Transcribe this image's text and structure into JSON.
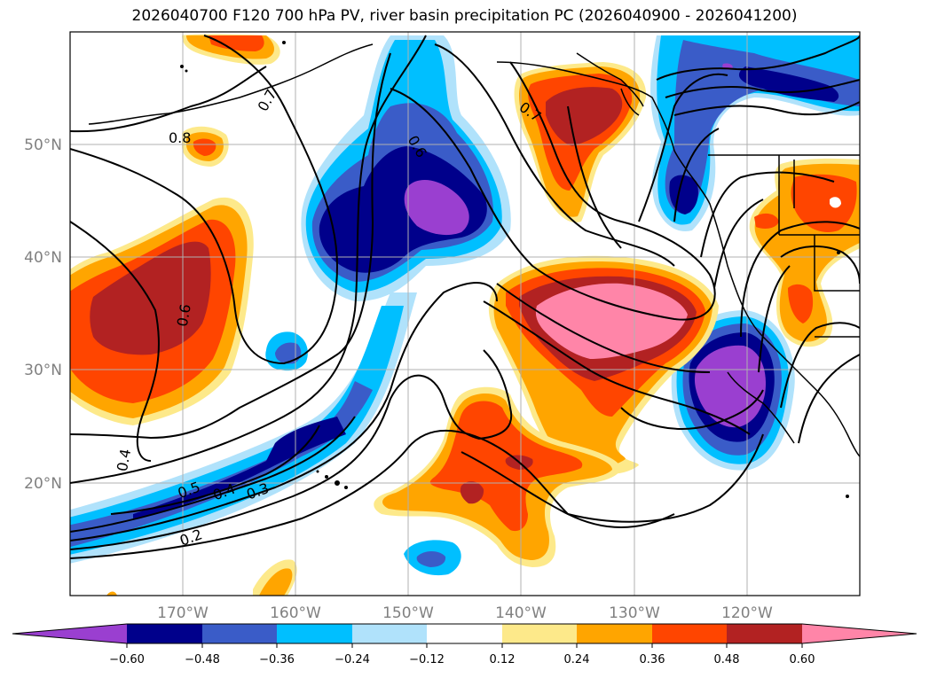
{
  "title": "2026040700 F120 700 hPa PV, river basin precipitation PC (2026040900 - 2026041200)",
  "colors": {
    "neg_lt_060": "#9a3fd0",
    "neg_048_060": "#00008b",
    "neg_036_048": "#3a5cc8",
    "neg_024_036": "#00bfff",
    "neg_012_024": "#b0e2fb",
    "zero": "#ffffff",
    "pos_012_024": "#fde98a",
    "pos_024_036": "#ffa500",
    "pos_036_048": "#ff4500",
    "pos_048_060": "#b22222",
    "pos_gt_060": "#ff85a8"
  },
  "lat_labels": [
    "50°N",
    "40°N",
    "30°N",
    "20°N"
  ],
  "lon_labels": [
    "170°W",
    "160°W",
    "150°W",
    "140°W",
    "130°W",
    "120°W"
  ],
  "colorbar": {
    "ticks": [
      "−0.60",
      "−0.48",
      "−0.36",
      "−0.24",
      "−0.12",
      "0.12",
      "0.24",
      "0.36",
      "0.48",
      "0.60"
    ]
  },
  "contour_labels": [
    "0.8",
    "0.7",
    "0.6",
    "0.5",
    "0.4",
    "0.4",
    "0.3",
    "0.2",
    "0.6",
    "0.7"
  ]
}
